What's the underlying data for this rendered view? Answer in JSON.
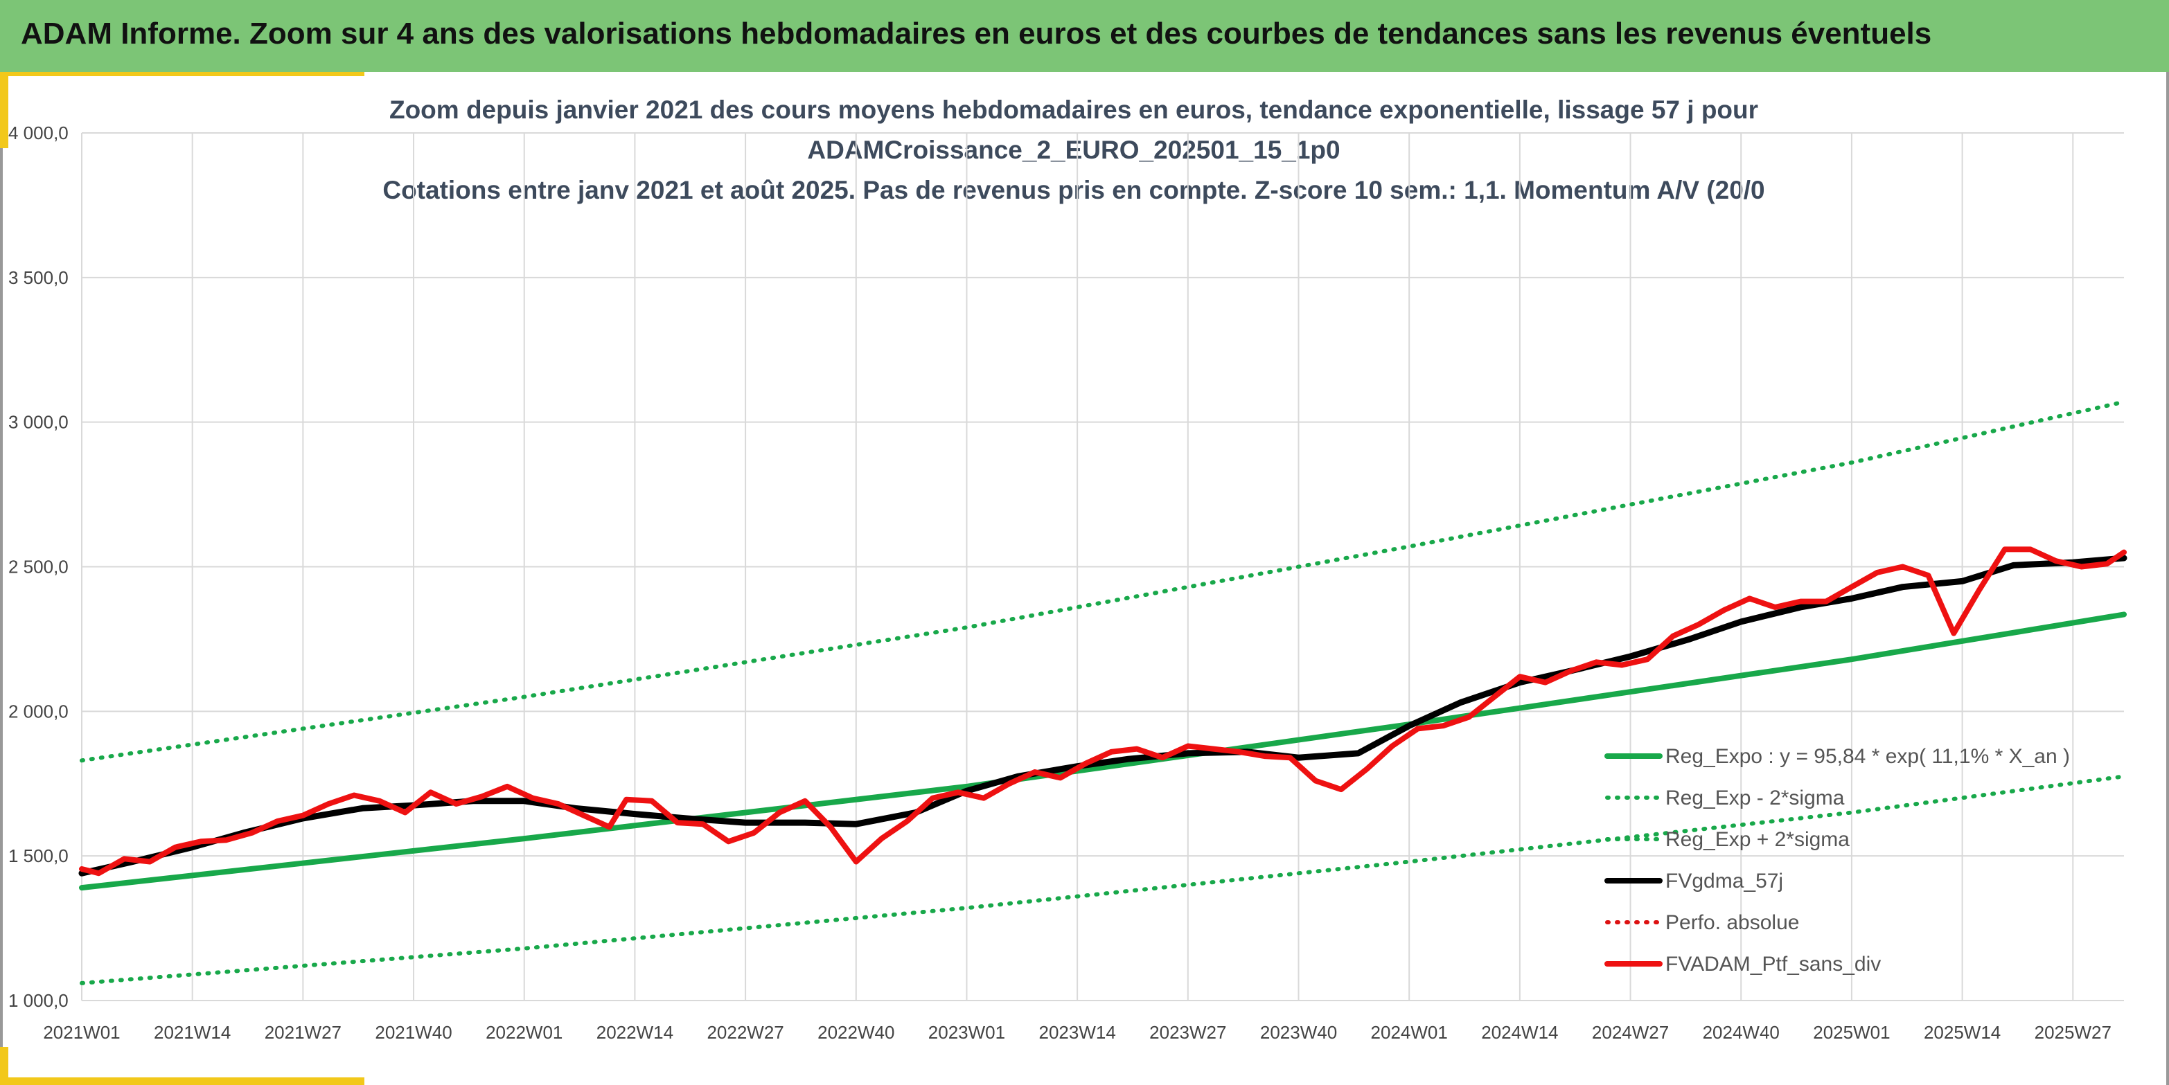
{
  "header": {
    "title": "ADAM Informe. Zoom sur 4 ans des valorisations hebdomadaires en euros et des courbes de tendances sans les revenus éventuels",
    "background": "#7cc576"
  },
  "chart_data": {
    "type": "line",
    "title_lines": [
      "Zoom depuis janvier 2021 des cours moyens hebdomadaires en euros, tendance exponentielle, lissage 57 j pour",
      "ADAMCroissance_2_EURO_202501_15_1p0",
      "Cotations entre janv 2021 et août 2025. Pas de revenus pris en compte. Z-score 10 sem.: 1,1. Momentum A/V (20/0"
    ],
    "ylim": [
      1000,
      4000
    ],
    "yticks": [
      "1 000,0",
      "1 500,0",
      "2 000,0",
      "2 500,0",
      "3 000,0",
      "3 500,0",
      "4 000,0"
    ],
    "ytick_values": [
      1000,
      1500,
      2000,
      2500,
      3000,
      3500,
      4000
    ],
    "x_start": "2021W01",
    "x_end": "2025W33",
    "xticks": [
      "2021W01",
      "2021W14",
      "2021W27",
      "2021W40",
      "2022W01",
      "2022W14",
      "2022W27",
      "2022W40",
      "2023W01",
      "2023W14",
      "2023W27",
      "2023W40",
      "2024W01",
      "2024W14",
      "2024W27",
      "2024W40",
      "2025W01",
      "2025W14",
      "2025W27"
    ],
    "grid": true,
    "legend_position": "bottom-right",
    "series": [
      {
        "name": "Reg_Expo : y = 95,84 * exp( 11,1% *  X_an )",
        "color": "#18a84a",
        "style": "solid",
        "x": [
          "2021W01",
          "2022W01",
          "2023W01",
          "2024W01",
          "2025W01",
          "2025W33"
        ],
        "values": [
          1390,
          1560,
          1740,
          1955,
          2180,
          2335
        ]
      },
      {
        "name": "Reg_Exp - 2*sigma",
        "color": "#18a84a",
        "style": "dotted",
        "x": [
          "2021W01",
          "2022W01",
          "2023W01",
          "2024W01",
          "2025W01",
          "2025W33"
        ],
        "values": [
          1060,
          1180,
          1320,
          1480,
          1650,
          1775
        ]
      },
      {
        "name": "Reg_Exp + 2*sigma",
        "color": "#18a84a",
        "style": "dotted",
        "x": [
          "2021W01",
          "2022W01",
          "2023W01",
          "2024W01",
          "2025W01",
          "2025W33"
        ],
        "values": [
          1830,
          2050,
          2290,
          2570,
          2860,
          3070
        ]
      },
      {
        "name": "FVgdma_57j",
        "color": "#000000",
        "style": "solid",
        "x": [
          "2021W01",
          "2021W07",
          "2021W14",
          "2021W20",
          "2021W27",
          "2021W34",
          "2021W40",
          "2021W47",
          "2022W01",
          "2022W07",
          "2022W14",
          "2022W20",
          "2022W27",
          "2022W34",
          "2022W40",
          "2022W47",
          "2023W01",
          "2023W07",
          "2023W14",
          "2023W20",
          "2023W27",
          "2023W34",
          "2023W40",
          "2023W47",
          "2024W01",
          "2024W07",
          "2024W14",
          "2024W20",
          "2024W27",
          "2024W34",
          "2024W40",
          "2024W47",
          "2025W01",
          "2025W07",
          "2025W14",
          "2025W20",
          "2025W27",
          "2025W33"
        ],
        "values": [
          1440,
          1480,
          1530,
          1580,
          1630,
          1665,
          1675,
          1690,
          1690,
          1665,
          1645,
          1630,
          1615,
          1615,
          1610,
          1650,
          1725,
          1775,
          1810,
          1835,
          1855,
          1860,
          1840,
          1855,
          1950,
          2030,
          2100,
          2140,
          2190,
          2250,
          2310,
          2360,
          2390,
          2430,
          2450,
          2505,
          2515,
          2530
        ]
      },
      {
        "name": "Perfo. absolue",
        "color": "#dd1111",
        "style": "dotted",
        "x": [],
        "values": []
      },
      {
        "name": "FVADAM_Ptf_sans_div",
        "color": "#ee1111",
        "style": "solid",
        "x": [
          "2021W01",
          "2021W03",
          "2021W06",
          "2021W09",
          "2021W12",
          "2021W15",
          "2021W18",
          "2021W21",
          "2021W24",
          "2021W27",
          "2021W30",
          "2021W33",
          "2021W36",
          "2021W39",
          "2021W42",
          "2021W45",
          "2021W48",
          "2021W51",
          "2022W02",
          "2022W05",
          "2022W08",
          "2022W11",
          "2022W13",
          "2022W16",
          "2022W19",
          "2022W22",
          "2022W25",
          "2022W28",
          "2022W31",
          "2022W34",
          "2022W37",
          "2022W40",
          "2022W43",
          "2022W46",
          "2022W49",
          "2022W52",
          "2023W03",
          "2023W06",
          "2023W09",
          "2023W12",
          "2023W15",
          "2023W18",
          "2023W21",
          "2023W24",
          "2023W27",
          "2023W30",
          "2023W33",
          "2023W36",
          "2023W39",
          "2023W42",
          "2023W45",
          "2023W48",
          "2023W51",
          "2024W02",
          "2024W05",
          "2024W08",
          "2024W11",
          "2024W14",
          "2024W17",
          "2024W20",
          "2024W23",
          "2024W26",
          "2024W29",
          "2024W32",
          "2024W35",
          "2024W38",
          "2024W41",
          "2024W44",
          "2024W47",
          "2024W50",
          "2025W01",
          "2025W04",
          "2025W07",
          "2025W10",
          "2025W13",
          "2025W16",
          "2025W19",
          "2025W22",
          "2025W25",
          "2025W28",
          "2025W31",
          "2025W33"
        ],
        "values": [
          1455,
          1440,
          1490,
          1480,
          1530,
          1550,
          1555,
          1580,
          1620,
          1640,
          1680,
          1710,
          1690,
          1650,
          1720,
          1680,
          1705,
          1740,
          1700,
          1680,
          1640,
          1600,
          1695,
          1690,
          1615,
          1610,
          1550,
          1580,
          1650,
          1690,
          1600,
          1480,
          1560,
          1620,
          1700,
          1720,
          1700,
          1750,
          1790,
          1770,
          1820,
          1860,
          1870,
          1840,
          1880,
          1870,
          1860,
          1845,
          1840,
          1760,
          1730,
          1800,
          1880,
          1940,
          1950,
          1980,
          2050,
          2120,
          2100,
          2140,
          2170,
          2160,
          2180,
          2260,
          2300,
          2350,
          2390,
          2360,
          2380,
          2380,
          2430,
          2480,
          2500,
          2470,
          2270,
          2420,
          2560,
          2560,
          2520,
          2500,
          2510,
          2550
        ]
      }
    ]
  }
}
